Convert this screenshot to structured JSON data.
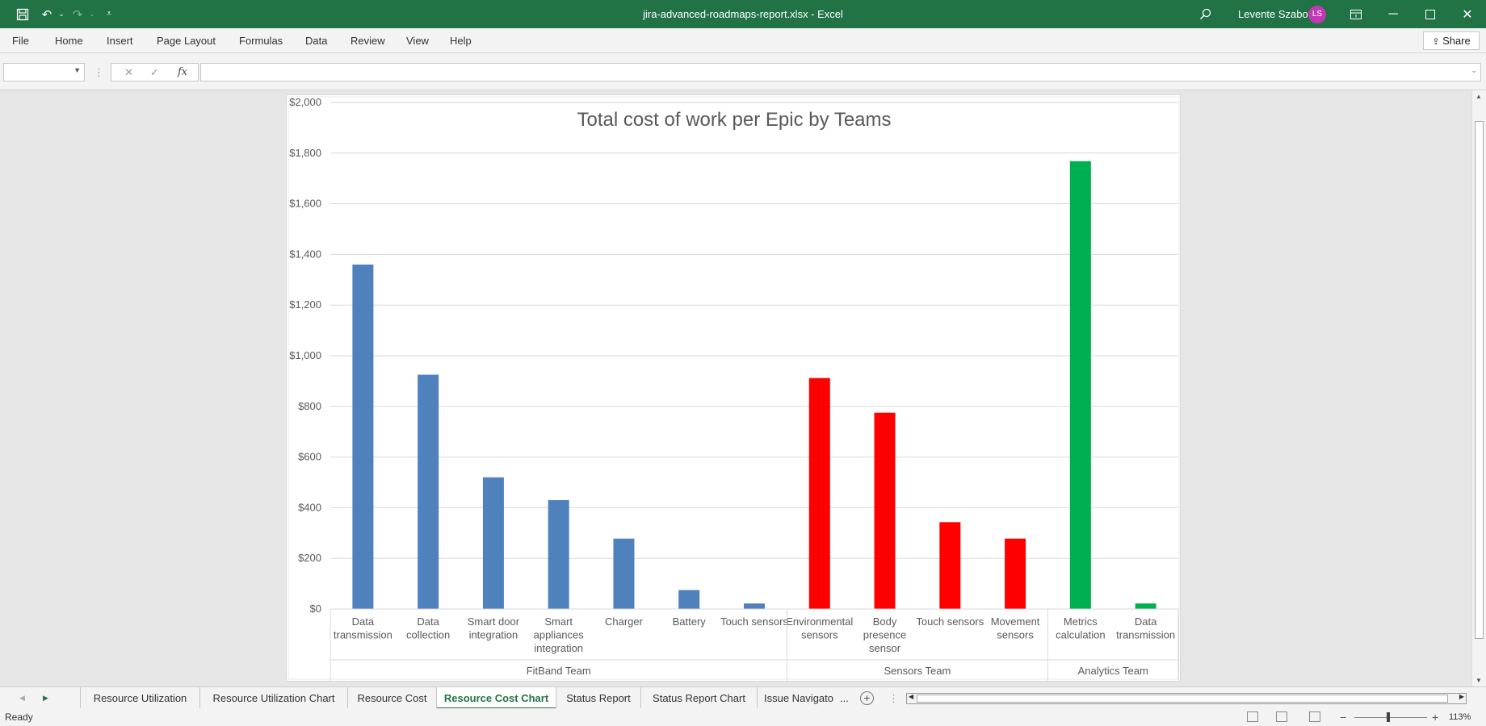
{
  "window": {
    "title": "jira-advanced-roadmaps-report.xlsx  -  Excel",
    "user_name": "Levente Szabo",
    "user_initials": "LS"
  },
  "ribbon": {
    "tabs": [
      "File",
      "Home",
      "Insert",
      "Page Layout",
      "Formulas",
      "Data",
      "Review",
      "View",
      "Help"
    ],
    "share_label": "Share"
  },
  "formula_bar": {
    "name_box": "",
    "formula": ""
  },
  "sheet_tabs": {
    "tabs": [
      "Resource Utilization",
      "Resource Utilization Chart",
      "Resource Cost",
      "Resource Cost Chart",
      "Status Report",
      "Status Report Chart",
      "Issue Navigato"
    ],
    "active": "Resource Cost Chart",
    "more": "..."
  },
  "status_bar": {
    "status": "Ready",
    "zoom": "113%"
  },
  "colors": {
    "title_bar": "#217346",
    "fitband": "#4f81bd",
    "sensors": "#ff0000",
    "analytics": "#00b050"
  },
  "chart_data": {
    "type": "bar",
    "title": "Total cost of work per Epic by Teams",
    "xlabel": "",
    "ylabel": "",
    "ylim": [
      0,
      2000
    ],
    "ytick_step": 200,
    "ytick_labels": [
      "$0",
      "$200",
      "$400",
      "$600",
      "$800",
      "$1,000",
      "$1,200",
      "$1,400",
      "$1,600",
      "$1,800",
      "$2,000"
    ],
    "grid": true,
    "legend": "none",
    "groups": [
      {
        "name": "FitBand Team",
        "color": "#4f81bd",
        "categories": [
          [
            "Data",
            "transmission"
          ],
          [
            "Data",
            "collection"
          ],
          [
            "Smart door",
            "integration"
          ],
          [
            "Smart",
            "appliances",
            "integration"
          ],
          [
            "Charger"
          ],
          [
            "Battery"
          ],
          [
            "Touch sensors"
          ]
        ],
        "values": [
          1360,
          925,
          520,
          430,
          278,
          75,
          22
        ]
      },
      {
        "name": "Sensors Team",
        "color": "#ff0000",
        "categories": [
          [
            "Environmental",
            "sensors"
          ],
          [
            "Body",
            "presence",
            "sensor"
          ],
          [
            "Touch sensors"
          ],
          [
            "Movement",
            "sensors"
          ]
        ],
        "values": [
          912,
          775,
          343,
          278
        ]
      },
      {
        "name": "Analytics Team",
        "color": "#00b050",
        "categories": [
          [
            "Metrics",
            "calculation"
          ],
          [
            "Data",
            "transmission"
          ]
        ],
        "values": [
          1768,
          22
        ]
      }
    ]
  }
}
